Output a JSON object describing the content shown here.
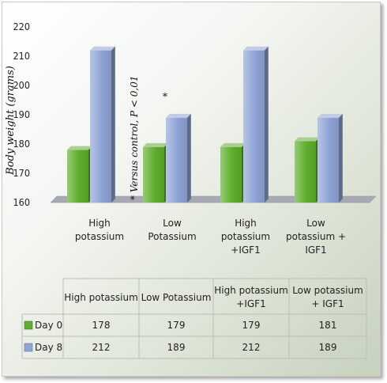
{
  "chart_data": {
    "type": "bar",
    "categories": [
      "High\npotassium",
      "Low\nPotassium",
      "High\npotassium\n+IGF1",
      "Low\npotassium +\nIGF1"
    ],
    "series": [
      {
        "name": "Day 0",
        "values": [
          178,
          179,
          179,
          181
        ],
        "color": "#5fae2c"
      },
      {
        "name": "Day 8",
        "values": [
          212,
          189,
          212,
          189
        ],
        "color": "#8fa4d6"
      }
    ],
    "ylabel": "Body weight (grams)",
    "ylim": [
      160,
      220
    ],
    "yticks": [
      160,
      170,
      180,
      190,
      200,
      210,
      220
    ],
    "annotations": [
      {
        "text": "* Versus control, P < 0,01"
      },
      {
        "text": "*"
      }
    ],
    "table": {
      "headers": [
        "High potassium",
        "Low Potassium",
        "High potassium\n+IGF1",
        "Low potassium\n+ IGF1"
      ],
      "rows": [
        {
          "label": "Day 0",
          "values": [
            "178",
            "179",
            "179",
            "181"
          ]
        },
        {
          "label": "Day 8",
          "values": [
            "212",
            "189",
            "212",
            "189"
          ]
        }
      ]
    },
    "grid": false,
    "legend": "table"
  }
}
